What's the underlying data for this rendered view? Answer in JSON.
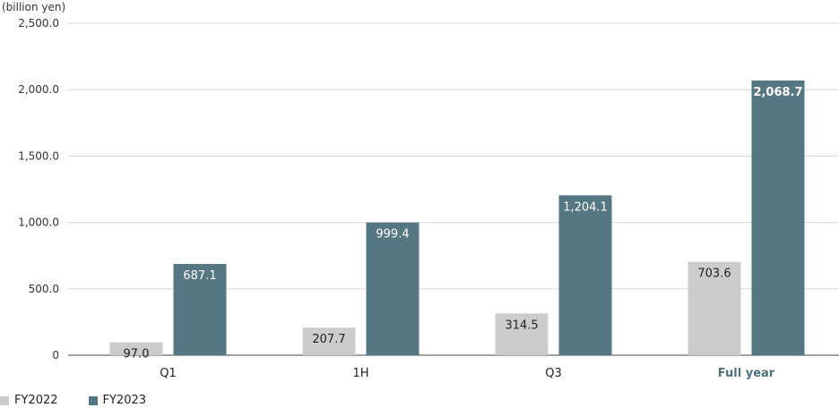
{
  "chart_data": {
    "type": "bar",
    "unit_label": "(billion yen)",
    "categories": [
      "Q1",
      "1H",
      "Q3",
      "Full year"
    ],
    "highlight_category": "Full year",
    "ylim": [
      0,
      2500
    ],
    "yticks": [
      {
        "value": 0,
        "label": "0"
      },
      {
        "value": 500,
        "label": "500.0"
      },
      {
        "value": 1000,
        "label": "1,000.0"
      },
      {
        "value": 1500,
        "label": "1,500.0"
      },
      {
        "value": 2000,
        "label": "2,000.0"
      },
      {
        "value": 2500,
        "label": "2,500.0"
      }
    ],
    "grid": true,
    "legend_position": "bottom-left",
    "series": [
      {
        "name": "FY2022",
        "color": "#cccccc",
        "values": [
          97.0,
          207.7,
          314.5,
          703.6
        ],
        "labels": [
          "97.0",
          "207.7",
          "314.5",
          "703.6"
        ]
      },
      {
        "name": "FY2023",
        "color": "#557782",
        "values": [
          687.1,
          999.4,
          1204.1,
          2068.7
        ],
        "labels": [
          "687.1",
          "999.4",
          "1,204.1",
          "2,068.7"
        ]
      }
    ]
  }
}
